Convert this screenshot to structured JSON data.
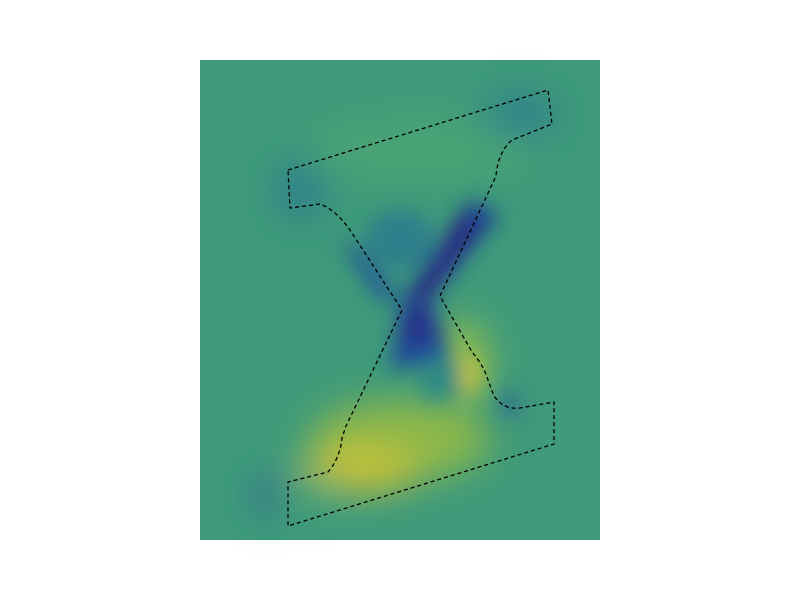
{
  "figure": {
    "style": {
      "background": "#ffffff",
      "undeformed_outline_color": "#9a9a9a",
      "reference_outline_color": "#000000",
      "colormap": [
        "#2b1a7a",
        "#1f4e9a",
        "#2f7f8c",
        "#3f9a7a",
        "#69ae5a",
        "#b8c23c",
        "#e8c92a"
      ],
      "base_fill_color": "#3f9a7a"
    }
  }
}
